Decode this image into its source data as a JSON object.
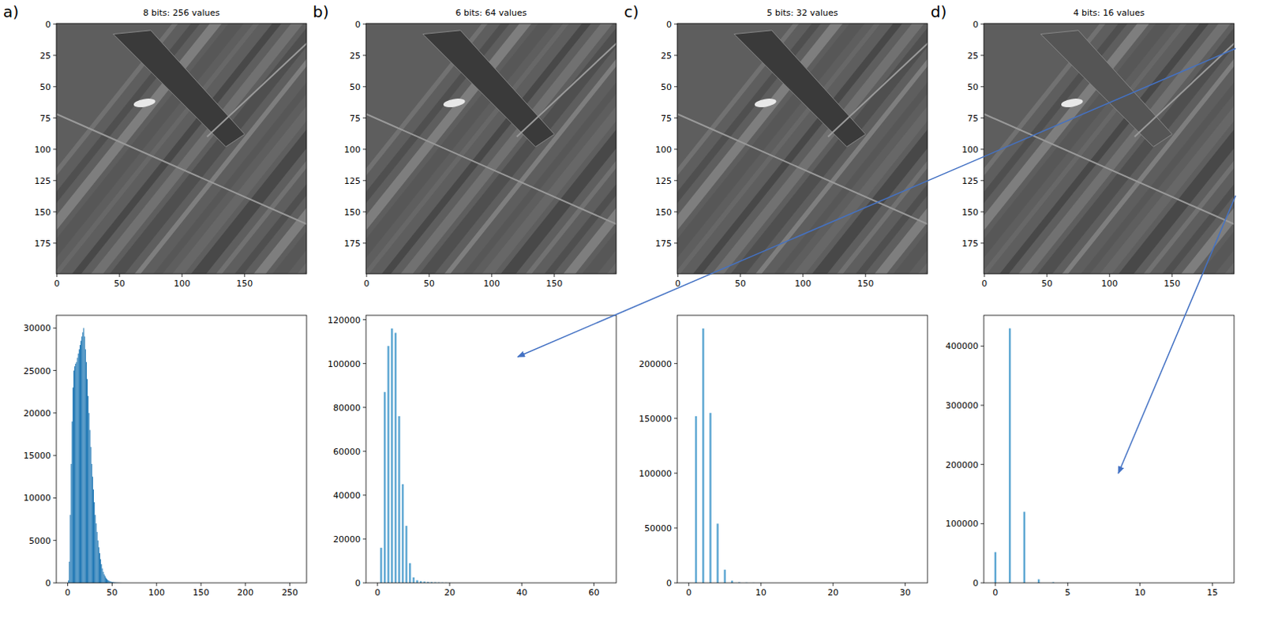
{
  "chart_data": [
    {
      "type": "image",
      "title": "8 bits: 256 values",
      "annotation": "a)",
      "xlim": [
        -0.5,
        199.5
      ],
      "ylim": [
        199.5,
        -0.5
      ],
      "xticks": [
        0,
        50,
        100,
        150
      ],
      "yticks": [
        0,
        25,
        50,
        75,
        100,
        125,
        150,
        175
      ]
    },
    {
      "type": "bar",
      "x": [
        0,
        1,
        2,
        3,
        4,
        5,
        6,
        7,
        8,
        9,
        10,
        11,
        12,
        13,
        14,
        15,
        16,
        17,
        18,
        19,
        20,
        21,
        22,
        23,
        24,
        25,
        26,
        27,
        28,
        29,
        30,
        31,
        32,
        33,
        34,
        35,
        36,
        37,
        38,
        39,
        40,
        41,
        42,
        43,
        44,
        45,
        46,
        47,
        48,
        49,
        50,
        51,
        52,
        53,
        54,
        55,
        56,
        57,
        58,
        59,
        60
      ],
      "values": [
        0,
        300,
        2500,
        8000,
        14000,
        19000,
        23000,
        25000,
        25500,
        25800,
        26000,
        26500,
        27000,
        27500,
        28000,
        28500,
        29000,
        29500,
        30000,
        29000,
        27500,
        26000,
        24000,
        22000,
        20000,
        18000,
        16000,
        14000,
        12500,
        11000,
        9500,
        8000,
        7000,
        6000,
        5000,
        4200,
        3500,
        2800,
        2200,
        1700,
        1300,
        1000,
        800,
        600,
        450,
        350,
        280,
        220,
        170,
        130,
        100,
        80,
        60,
        50,
        40,
        30,
        25,
        20,
        15,
        10,
        5
      ],
      "color": "#1f77b4",
      "xlim": [
        -12.8,
        268.8
      ],
      "ylim": [
        0,
        31500
      ],
      "xticks": [
        0,
        50,
        100,
        150,
        200,
        250
      ],
      "yticks": [
        0,
        5000,
        10000,
        15000,
        20000,
        25000,
        30000
      ]
    },
    {
      "type": "image",
      "title": "6 bits: 64 values",
      "annotation": "b)",
      "xlim": [
        -0.5,
        199.5
      ],
      "ylim": [
        199.5,
        -0.5
      ],
      "xticks": [
        0,
        50,
        100,
        150
      ],
      "yticks": [
        0,
        25,
        50,
        75,
        100,
        125,
        150,
        175
      ]
    },
    {
      "type": "bar",
      "x": [
        0,
        1,
        2,
        3,
        4,
        5,
        6,
        7,
        8,
        9,
        10,
        11,
        12,
        13,
        14,
        15,
        16,
        17,
        18,
        19,
        20
      ],
      "values": [
        0,
        16000,
        87000,
        108000,
        116000,
        114000,
        76000,
        45000,
        26000,
        9000,
        2500,
        1200,
        800,
        600,
        450,
        350,
        250,
        180,
        120,
        80,
        50
      ],
      "color": "#5fa8d3",
      "xlim": [
        -3.2,
        66.2
      ],
      "ylim": [
        0,
        122000
      ],
      "xticks": [
        0,
        20,
        40,
        60
      ],
      "yticks": [
        0,
        20000,
        40000,
        60000,
        80000,
        100000,
        120000
      ]
    },
    {
      "type": "image",
      "title": "5 bits: 32 values",
      "annotation": "c)",
      "xlim": [
        -0.5,
        199.5
      ],
      "ylim": [
        199.5,
        -0.5
      ],
      "xticks": [
        0,
        50,
        100,
        150
      ],
      "yticks": [
        0,
        25,
        50,
        75,
        100,
        125,
        150,
        175
      ]
    },
    {
      "type": "bar",
      "x": [
        0,
        1,
        2,
        3,
        4,
        5,
        6,
        7,
        8,
        9,
        10
      ],
      "values": [
        0,
        152000,
        232000,
        155000,
        54000,
        12000,
        2000,
        500,
        200,
        100,
        50
      ],
      "color": "#5fa8d3",
      "xlim": [
        -1.6,
        33.1
      ],
      "ylim": [
        0,
        244000
      ],
      "xticks": [
        0,
        10,
        20,
        30
      ],
      "yticks": [
        0,
        50000,
        100000,
        150000,
        200000
      ]
    },
    {
      "type": "image",
      "title": "4 bits: 16 values",
      "annotation": "d)",
      "xlim": [
        -0.5,
        199.5
      ],
      "ylim": [
        199.5,
        -0.5
      ],
      "xticks": [
        0,
        50,
        100,
        150
      ],
      "yticks": [
        0,
        25,
        50,
        75,
        100,
        125,
        150,
        175
      ]
    },
    {
      "type": "bar",
      "x": [
        0,
        1,
        2,
        3,
        4,
        5
      ],
      "values": [
        52000,
        430000,
        120000,
        6000,
        1000,
        200
      ],
      "color": "#5fa8d3",
      "xlim": [
        -0.8,
        16.5
      ],
      "ylim": [
        0,
        452000
      ],
      "xticks": [
        0,
        5,
        10,
        15
      ],
      "yticks": [
        0,
        100000,
        200000,
        300000,
        400000
      ]
    }
  ]
}
